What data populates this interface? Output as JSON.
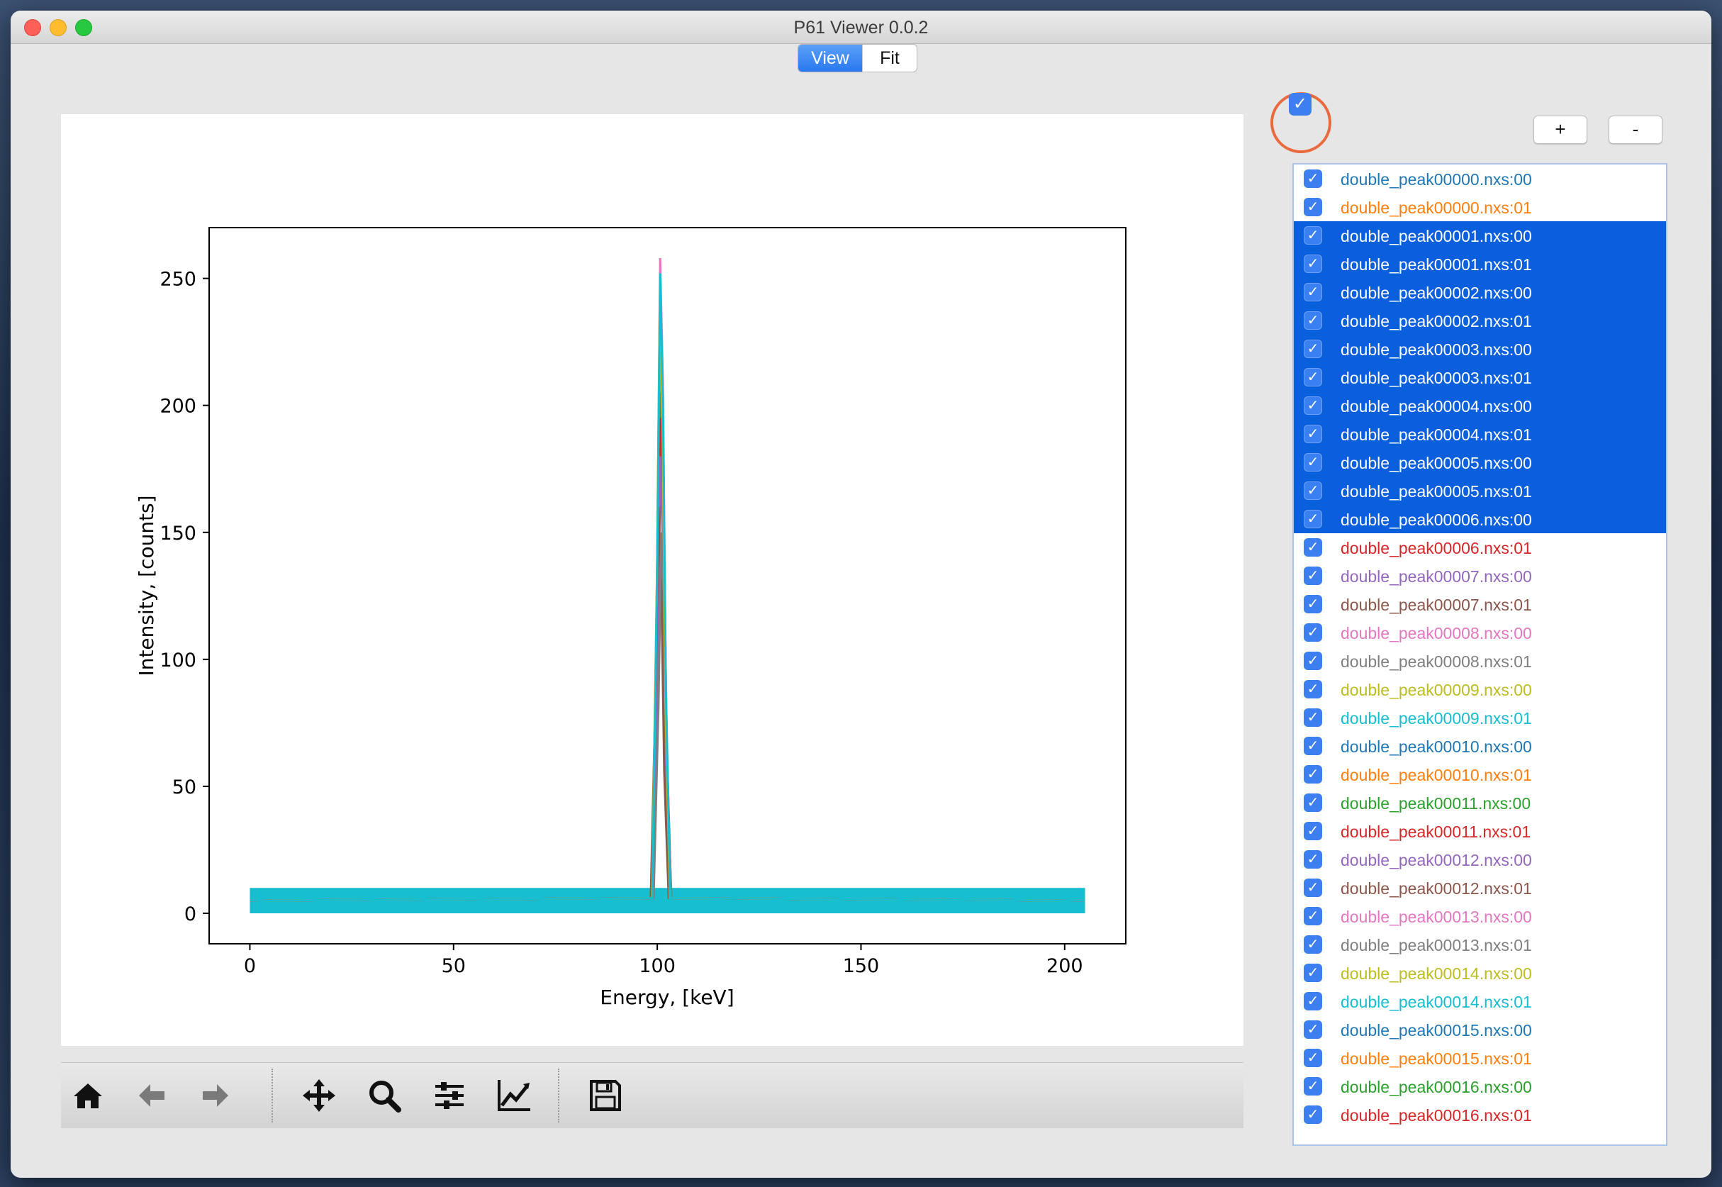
{
  "window": {
    "title": "P61 Viewer 0.0.2"
  },
  "tabs": [
    {
      "label": "View",
      "active": true
    },
    {
      "label": "Fit",
      "active": false
    }
  ],
  "controls": {
    "add_label": "+",
    "remove_label": "-",
    "select_all_checked": true
  },
  "toolbar": {
    "icons": [
      "home-icon",
      "back-arrow-icon",
      "forward-arrow-icon",
      "pan-icon",
      "zoom-icon",
      "configure-subplots-icon",
      "edit-axes-icon",
      "save-icon"
    ]
  },
  "colors": {
    "accent": "#2a78ee",
    "selection": "#0a5fdd",
    "highlight_ring": "#ea6a3f"
  },
  "list": {
    "items": [
      {
        "label": "double_peak00000.nxs:00",
        "color": "#1f77b4",
        "checked": true,
        "selected": false
      },
      {
        "label": "double_peak00000.nxs:01",
        "color": "#ff7f0e",
        "checked": true,
        "selected": false
      },
      {
        "label": "double_peak00001.nxs:00",
        "color": "#2ca02c",
        "checked": true,
        "selected": true
      },
      {
        "label": "double_peak00001.nxs:01",
        "color": "#d62728",
        "checked": true,
        "selected": true
      },
      {
        "label": "double_peak00002.nxs:00",
        "color": "#9467bd",
        "checked": true,
        "selected": true
      },
      {
        "label": "double_peak00002.nxs:01",
        "color": "#8c564b",
        "checked": true,
        "selected": true
      },
      {
        "label": "double_peak00003.nxs:00",
        "color": "#e377c2",
        "checked": true,
        "selected": true
      },
      {
        "label": "double_peak00003.nxs:01",
        "color": "#7f7f7f",
        "checked": true,
        "selected": true
      },
      {
        "label": "double_peak00004.nxs:00",
        "color": "#bcbd22",
        "checked": true,
        "selected": true
      },
      {
        "label": "double_peak00004.nxs:01",
        "color": "#17becf",
        "checked": true,
        "selected": true
      },
      {
        "label": "double_peak00005.nxs:00",
        "color": "#1f77b4",
        "checked": true,
        "selected": true
      },
      {
        "label": "double_peak00005.nxs:01",
        "color": "#ff7f0e",
        "checked": true,
        "selected": true
      },
      {
        "label": "double_peak00006.nxs:00",
        "color": "#2ca02c",
        "checked": true,
        "selected": true
      },
      {
        "label": "double_peak00006.nxs:01",
        "color": "#d62728",
        "checked": true,
        "selected": false
      },
      {
        "label": "double_peak00007.nxs:00",
        "color": "#9467bd",
        "checked": true,
        "selected": false
      },
      {
        "label": "double_peak00007.nxs:01",
        "color": "#8c564b",
        "checked": true,
        "selected": false
      },
      {
        "label": "double_peak00008.nxs:00",
        "color": "#e377c2",
        "checked": true,
        "selected": false
      },
      {
        "label": "double_peak00008.nxs:01",
        "color": "#7f7f7f",
        "checked": true,
        "selected": false
      },
      {
        "label": "double_peak00009.nxs:00",
        "color": "#bcbd22",
        "checked": true,
        "selected": false
      },
      {
        "label": "double_peak00009.nxs:01",
        "color": "#17becf",
        "checked": true,
        "selected": false
      },
      {
        "label": "double_peak00010.nxs:00",
        "color": "#1f77b4",
        "checked": true,
        "selected": false
      },
      {
        "label": "double_peak00010.nxs:01",
        "color": "#ff7f0e",
        "checked": true,
        "selected": false
      },
      {
        "label": "double_peak00011.nxs:00",
        "color": "#2ca02c",
        "checked": true,
        "selected": false
      },
      {
        "label": "double_peak00011.nxs:01",
        "color": "#d62728",
        "checked": true,
        "selected": false
      },
      {
        "label": "double_peak00012.nxs:00",
        "color": "#9467bd",
        "checked": true,
        "selected": false
      },
      {
        "label": "double_peak00012.nxs:01",
        "color": "#8c564b",
        "checked": true,
        "selected": false
      },
      {
        "label": "double_peak00013.nxs:00",
        "color": "#e377c2",
        "checked": true,
        "selected": false
      },
      {
        "label": "double_peak00013.nxs:01",
        "color": "#7f7f7f",
        "checked": true,
        "selected": false
      },
      {
        "label": "double_peak00014.nxs:00",
        "color": "#bcbd22",
        "checked": true,
        "selected": false
      },
      {
        "label": "double_peak00014.nxs:01",
        "color": "#17becf",
        "checked": true,
        "selected": false
      },
      {
        "label": "double_peak00015.nxs:00",
        "color": "#1f77b4",
        "checked": true,
        "selected": false
      },
      {
        "label": "double_peak00015.nxs:01",
        "color": "#ff7f0e",
        "checked": true,
        "selected": false
      },
      {
        "label": "double_peak00016.nxs:00",
        "color": "#2ca02c",
        "checked": true,
        "selected": false
      },
      {
        "label": "double_peak00016.nxs:01",
        "color": "#d62728",
        "checked": true,
        "selected": false
      }
    ]
  },
  "chart_data": {
    "type": "line",
    "xlabel": "Energy, [keV]",
    "ylabel": "Intensity, [counts]",
    "xlim": [
      -10,
      215
    ],
    "ylim": [
      -12,
      270
    ],
    "xticks": [
      0,
      50,
      100,
      150,
      200
    ],
    "yticks": [
      0,
      50,
      100,
      150,
      200,
      250
    ],
    "grid": false,
    "legend": "none",
    "baseline": {
      "x_start": 0,
      "x_end": 205,
      "y_min": 0,
      "y_max": 10
    },
    "series": [
      {
        "color": "#1f77b4",
        "peak_x": 101,
        "peak_y": 225
      },
      {
        "color": "#ff7f0e",
        "peak_x": 101,
        "peak_y": 215
      },
      {
        "color": "#2ca02c",
        "peak_x": 100.8,
        "peak_y": 205
      },
      {
        "color": "#d62728",
        "peak_x": 101.2,
        "peak_y": 195
      },
      {
        "color": "#9467bd",
        "peak_x": 101,
        "peak_y": 180
      },
      {
        "color": "#8c564b",
        "peak_x": 100.6,
        "peak_y": 160
      },
      {
        "color": "#e377c2",
        "peak_x": 101,
        "peak_y": 258
      },
      {
        "color": "#7f7f7f",
        "peak_x": 101.3,
        "peak_y": 150
      },
      {
        "color": "#bcbd22",
        "peak_x": 100.9,
        "peak_y": 240
      },
      {
        "color": "#17becf",
        "peak_x": 101,
        "peak_y": 252
      }
    ]
  }
}
